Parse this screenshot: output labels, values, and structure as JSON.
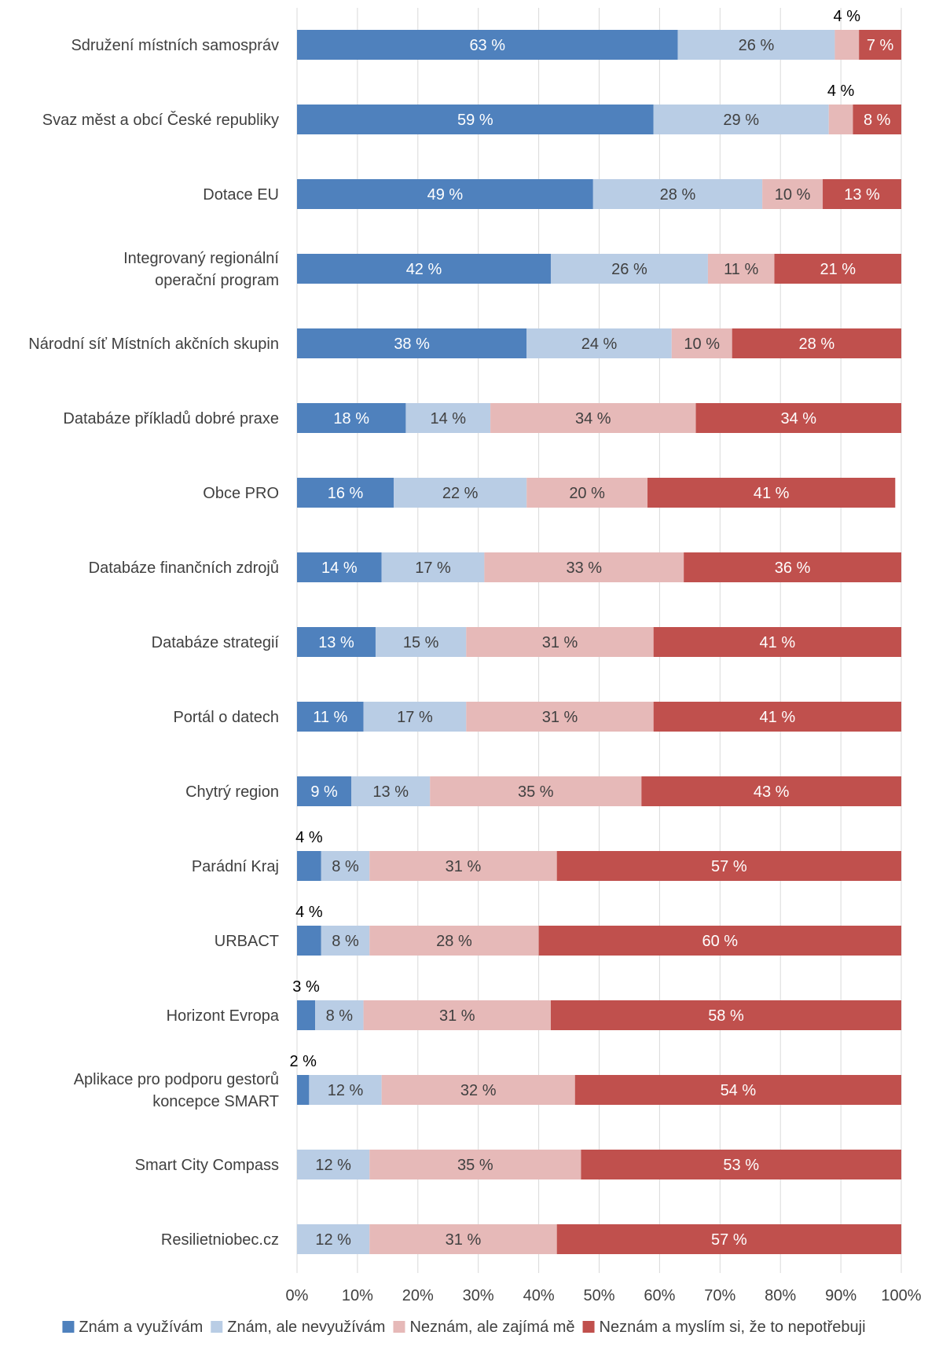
{
  "chart_data": {
    "type": "bar",
    "orientation": "horizontal",
    "stacked": true,
    "percent_stacked": true,
    "categories": [
      "Sdružení místních samospráv",
      "Svaz měst a obcí České republiky",
      "Dotace EU",
      "Integrovaný regionální operační program",
      "Národní síť Místních akčních skupin",
      "Databáze příkladů dobré praxe",
      "Obce PRO",
      "Databáze finančních zdrojů",
      "Databáze strategií",
      "Portál o datech",
      "Chytrý region",
      "Parádní Kraj",
      "URBACT",
      "Horizont Evropa",
      "Aplikace pro podporu gestorů koncepce SMART",
      "Smart City Compass",
      "Resilietniobec.cz"
    ],
    "category_lines": [
      [
        "Sdružení místních samospráv"
      ],
      [
        "Svaz měst a obcí České republiky"
      ],
      [
        "Dotace EU"
      ],
      [
        "Integrovaný regionální",
        "operační program"
      ],
      [
        "Národní síť Místních akčních skupin"
      ],
      [
        "Databáze příkladů dobré praxe"
      ],
      [
        "Obce PRO"
      ],
      [
        "Databáze finančních zdrojů"
      ],
      [
        "Databáze strategií"
      ],
      [
        "Portál o datech"
      ],
      [
        "Chytrý region"
      ],
      [
        "Parádní Kraj"
      ],
      [
        "URBACT"
      ],
      [
        "Horizont Evropa"
      ],
      [
        "Aplikace pro podporu gestorů",
        "koncepce SMART"
      ],
      [
        "Smart City Compass"
      ],
      [
        "Resilietniobec.cz"
      ]
    ],
    "series": [
      {
        "name": "Znám a využívám",
        "color": "#4F81BD",
        "label_color": "#ffffff",
        "values": [
          63,
          59,
          49,
          42,
          38,
          18,
          16,
          14,
          13,
          11,
          9,
          4,
          4,
          3,
          2,
          0,
          0
        ]
      },
      {
        "name": "Znám, ale nevyužívám",
        "color": "#B9CDE5",
        "label_color": "#404040",
        "values": [
          26,
          29,
          28,
          26,
          24,
          14,
          22,
          17,
          15,
          17,
          13,
          8,
          8,
          8,
          12,
          12,
          12
        ]
      },
      {
        "name": "Neznám, ale zajímá mě",
        "color": "#E6B9B8",
        "label_color": "#404040",
        "values": [
          4,
          4,
          10,
          11,
          10,
          34,
          20,
          33,
          31,
          31,
          35,
          31,
          28,
          31,
          32,
          35,
          31
        ]
      },
      {
        "name": "Neznám a myslím si, že to nepotřebuji",
        "color": "#C0504D",
        "label_color": "#ffffff",
        "values": [
          7,
          8,
          13,
          21,
          28,
          34,
          41,
          36,
          41,
          41,
          43,
          57,
          60,
          58,
          54,
          53,
          57
        ]
      }
    ],
    "value_suffix": " %",
    "xlim": [
      0,
      100
    ],
    "xticks": [
      0,
      10,
      20,
      30,
      40,
      50,
      60,
      70,
      80,
      90,
      100
    ],
    "xtick_labels": [
      "0%",
      "10%",
      "20%",
      "30%",
      "40%",
      "50%",
      "60%",
      "70%",
      "80%",
      "90%",
      "100%"
    ],
    "grid": "vertical",
    "grid_color": "#D9D9D9",
    "legend": "bottom",
    "title": "",
    "xlabel": "",
    "ylabel": ""
  }
}
